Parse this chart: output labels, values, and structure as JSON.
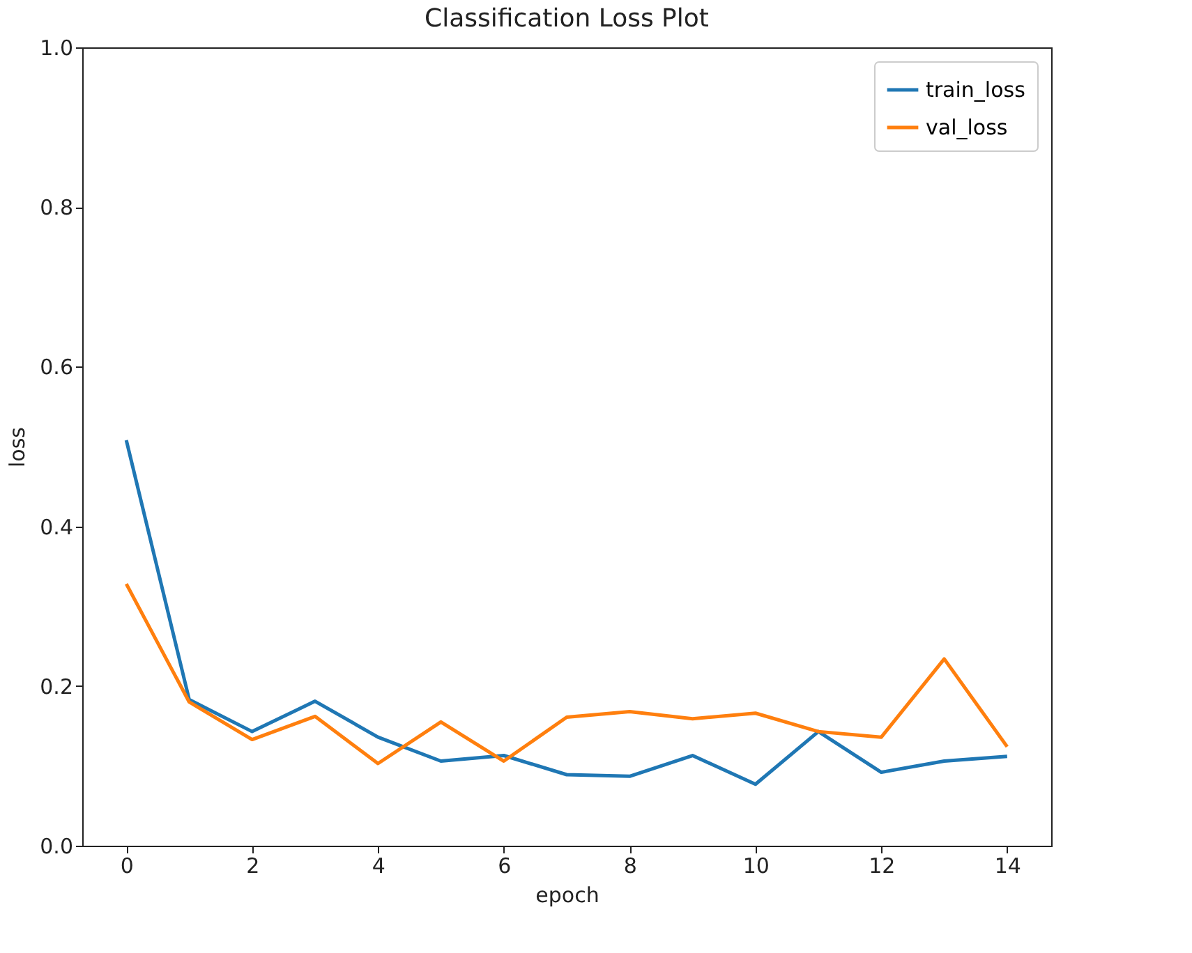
{
  "chart_data": {
    "type": "line",
    "title": "Classification Loss Plot",
    "xlabel": "epoch",
    "ylabel": "loss",
    "x": [
      0,
      1,
      2,
      3,
      4,
      5,
      6,
      7,
      8,
      9,
      10,
      11,
      12,
      13,
      14
    ],
    "series": [
      {
        "name": "train_loss",
        "color": "#1f77b4",
        "values": [
          0.508,
          0.183,
          0.143,
          0.181,
          0.136,
          0.106,
          0.113,
          0.089,
          0.087,
          0.113,
          0.077,
          0.143,
          0.092,
          0.106,
          0.112
        ]
      },
      {
        "name": "val_loss",
        "color": "#ff7f0e",
        "values": [
          0.328,
          0.18,
          0.133,
          0.162,
          0.103,
          0.155,
          0.106,
          0.161,
          0.168,
          0.159,
          0.166,
          0.143,
          0.136,
          0.234,
          0.124
        ]
      }
    ],
    "xlim": [
      -0.7,
      14.7
    ],
    "xticks": [
      0,
      2,
      4,
      6,
      8,
      10,
      12,
      14
    ],
    "ylim": [
      0,
      1.0
    ],
    "yticks": [
      {
        "value": 0,
        "label": "0.0"
      },
      0.2,
      0.4,
      0.6,
      0.8,
      {
        "value": 1,
        "label": "1.0"
      }
    ],
    "legend": "top right",
    "grid": false,
    "marker": "none",
    "line_style": "solid"
  }
}
